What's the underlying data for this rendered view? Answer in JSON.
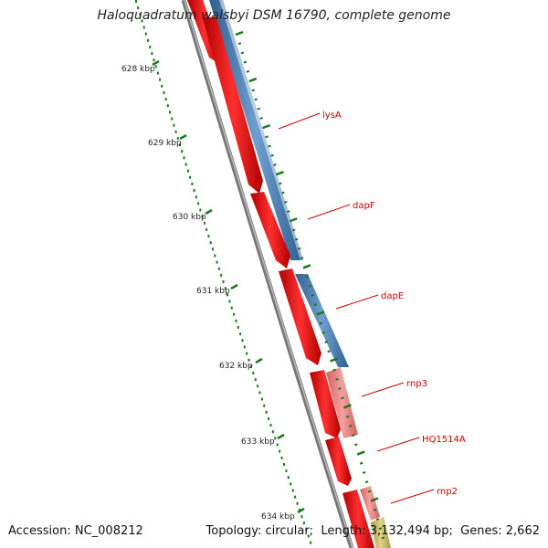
{
  "title": "Haloquadratum walsbyi DSM 16790, complete genome",
  "footer": {
    "accession_label": "Accession:",
    "accession": "NC_008212",
    "topology_label": "Topology:",
    "topology": "circular",
    "length_label": "Length:",
    "length": "3,132,494 bp",
    "genes_label": "Genes:",
    "genes": "2,662"
  },
  "scale_ticks": [
    "628 kbp",
    "629 kbp",
    "630 kbp",
    "631 kbp",
    "632 kbp",
    "633 kbp",
    "634 kbp"
  ],
  "gene_labels": [
    "lysA",
    "dapF",
    "dapE",
    "rnp3",
    "HQ1514A",
    "rnp2"
  ],
  "colors": {
    "backbone": "#808080",
    "cds_forward": "#ff0000",
    "cds_track": "#4f81b6",
    "rna_gene": "#f08080",
    "rna_gene_2": "#c8b864",
    "ticks": "#1a7a1a",
    "label_text": "#cc0000",
    "label_line": "#cc0000"
  }
}
